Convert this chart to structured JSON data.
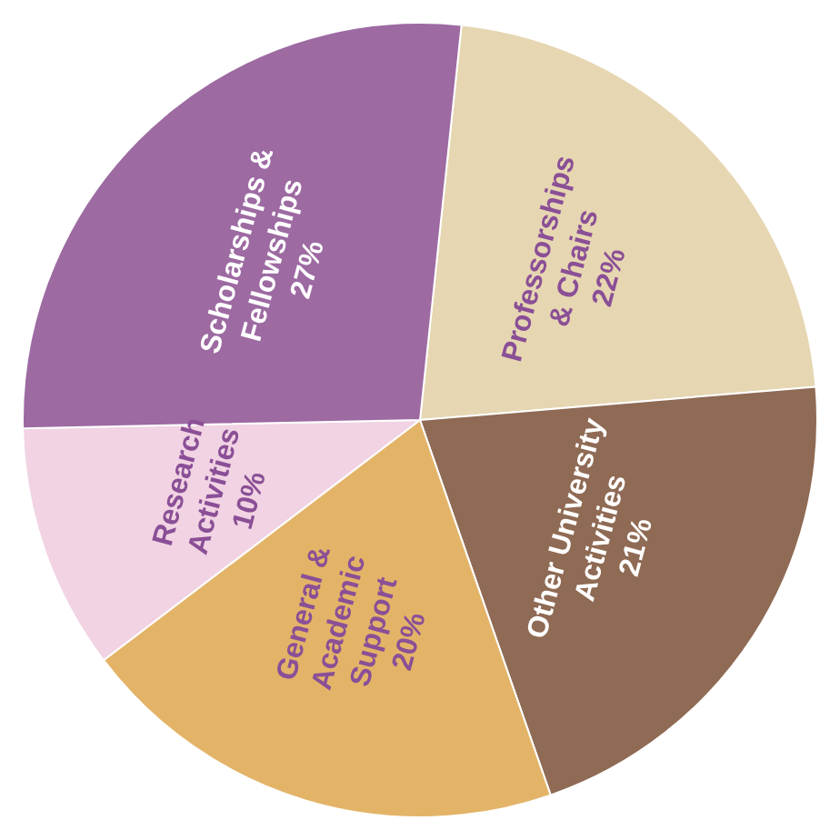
{
  "chart_data": {
    "type": "pie",
    "categories": [
      "Professorships & Chairs",
      "Other University Activities",
      "General & Academic Support",
      "Research Activities",
      "Scholarships & Fellowships"
    ],
    "values": [
      22,
      21,
      20,
      10,
      27
    ],
    "colors": [
      "#e6d6b2",
      "#8f6a54",
      "#e3b468",
      "#f1d3e3",
      "#9d6aa2"
    ],
    "value_labels": [
      "22%",
      "21%",
      "20%",
      "10%",
      "27%"
    ],
    "legend": false
  }
}
